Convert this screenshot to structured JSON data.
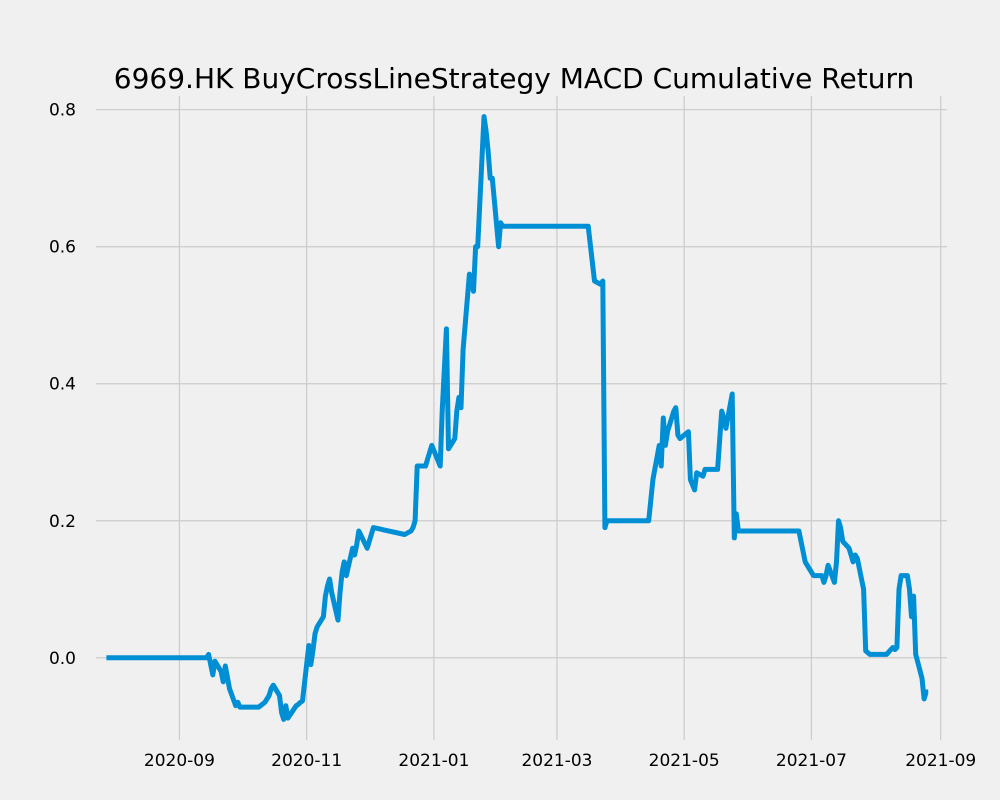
{
  "chart_data": {
    "type": "line",
    "title": "6969.HK  BuyCrossLineStrategy MACD Cumulative Return",
    "xlabel": "",
    "ylabel": "",
    "grid": true,
    "line_color": "#008fd5",
    "background_color": "#f0f0f0",
    "grid_color": "#cbcbcb",
    "xlim": [
      "2020-07-23",
      "2021-09-04"
    ],
    "ylim": [
      -0.12,
      0.82
    ],
    "x_ticks": [
      "2020-09-01",
      "2020-11-01",
      "2021-01-01",
      "2021-03-01",
      "2021-05-01",
      "2021-07-01",
      "2021-09-01"
    ],
    "x_tick_labels": [
      "2020-09",
      "2020-11",
      "2021-01",
      "2021-03",
      "2021-05",
      "2021-07",
      "2021-09"
    ],
    "y_ticks": [
      0.0,
      0.2,
      0.4,
      0.6,
      0.8
    ],
    "y_tick_labels": [
      "0.0",
      "0.2",
      "0.4",
      "0.6",
      "0.8"
    ],
    "series": [
      {
        "x": [
          "2020-07-28",
          "2020-09-14",
          "2020-09-15",
          "2020-09-16",
          "2020-09-17",
          "2020-09-18",
          "2020-09-21",
          "2020-09-22",
          "2020-09-23",
          "2020-09-25",
          "2020-09-28",
          "2020-09-29",
          "2020-09-30",
          "2020-10-05",
          "2020-10-09",
          "2020-10-12",
          "2020-10-14",
          "2020-10-15",
          "2020-10-16",
          "2020-10-19",
          "2020-10-20",
          "2020-10-21",
          "2020-10-22",
          "2020-10-23",
          "2020-10-27",
          "2020-10-28",
          "2020-10-29",
          "2020-10-30",
          "2020-11-02",
          "2020-11-03",
          "2020-11-04",
          "2020-11-05",
          "2020-11-06",
          "2020-11-09",
          "2020-11-10",
          "2020-11-11",
          "2020-11-12",
          "2020-11-13",
          "2020-11-16",
          "2020-11-17",
          "2020-11-18",
          "2020-11-19",
          "2020-11-20",
          "2020-11-23",
          "2020-11-24",
          "2020-11-25",
          "2020-11-26",
          "2020-11-30",
          "2020-12-03",
          "2020-12-18",
          "2020-12-21",
          "2020-12-22",
          "2020-12-23",
          "2020-12-24",
          "2020-12-28",
          "2020-12-29",
          "2020-12-30",
          "2020-12-31",
          "2021-01-04",
          "2021-01-05",
          "2021-01-06",
          "2021-01-07",
          "2021-01-08",
          "2021-01-11",
          "2021-01-12",
          "2021-01-13",
          "2021-01-14",
          "2021-01-15",
          "2021-01-18",
          "2021-01-19",
          "2021-01-20",
          "2021-01-21",
          "2021-01-22",
          "2021-01-25",
          "2021-01-26",
          "2021-01-27",
          "2021-01-28",
          "2021-01-29",
          "2021-02-01",
          "2021-02-02",
          "2021-02-03",
          "2021-02-05",
          "2021-03-16",
          "2021-03-19",
          "2021-03-22",
          "2021-03-23",
          "2021-03-24",
          "2021-03-25",
          "2021-04-01",
          "2021-04-13",
          "2021-04-14",
          "2021-04-16",
          "2021-04-19",
          "2021-04-20",
          "2021-04-21",
          "2021-04-22",
          "2021-04-23",
          "2021-04-26",
          "2021-04-27",
          "2021-04-28",
          "2021-04-29",
          "2021-05-03",
          "2021-05-04",
          "2021-05-06",
          "2021-05-07",
          "2021-05-10",
          "2021-05-11",
          "2021-05-12",
          "2021-05-17",
          "2021-05-19",
          "2021-05-20",
          "2021-05-21",
          "2021-05-24",
          "2021-05-25",
          "2021-05-26",
          "2021-05-27",
          "2021-05-28",
          "2021-06-25",
          "2021-06-28",
          "2021-07-02",
          "2021-07-05",
          "2021-07-06",
          "2021-07-07",
          "2021-07-08",
          "2021-07-09",
          "2021-07-12",
          "2021-07-13",
          "2021-07-14",
          "2021-07-15",
          "2021-07-16",
          "2021-07-19",
          "2021-07-20",
          "2021-07-21",
          "2021-07-22",
          "2021-07-23",
          "2021-07-26",
          "2021-07-27",
          "2021-07-29",
          "2021-08-05",
          "2021-08-06",
          "2021-08-09",
          "2021-08-10",
          "2021-08-11",
          "2021-08-12",
          "2021-08-13",
          "2021-08-16",
          "2021-08-17",
          "2021-08-18",
          "2021-08-19",
          "2021-08-20",
          "2021-08-23",
          "2021-08-24",
          "2021-08-25",
          "2021-08-26"
        ],
        "y": [
          0.0,
          0.0,
          0.005,
          -0.01,
          -0.025,
          -0.005,
          -0.02,
          -0.035,
          -0.012,
          -0.045,
          -0.07,
          -0.065,
          -0.072,
          -0.072,
          -0.072,
          -0.065,
          -0.055,
          -0.045,
          -0.04,
          -0.055,
          -0.08,
          -0.09,
          -0.07,
          -0.088,
          -0.07,
          -0.068,
          -0.065,
          -0.063,
          0.018,
          -0.01,
          0.01,
          0.035,
          0.045,
          0.06,
          0.09,
          0.105,
          0.115,
          0.095,
          0.055,
          0.095,
          0.125,
          0.14,
          0.12,
          0.16,
          0.15,
          0.165,
          0.185,
          0.16,
          0.19,
          0.18,
          0.185,
          0.19,
          0.2,
          0.28,
          0.28,
          0.29,
          0.3,
          0.31,
          0.28,
          0.36,
          0.42,
          0.48,
          0.305,
          0.32,
          0.36,
          0.38,
          0.365,
          0.45,
          0.56,
          0.55,
          0.535,
          0.6,
          0.6,
          0.79,
          0.77,
          0.74,
          0.7,
          0.7,
          0.6,
          0.635,
          0.63,
          0.63,
          0.63,
          0.55,
          0.545,
          0.55,
          0.19,
          0.2,
          0.2,
          0.2,
          0.2,
          0.26,
          0.31,
          0.28,
          0.35,
          0.31,
          0.33,
          0.36,
          0.365,
          0.325,
          0.32,
          0.33,
          0.26,
          0.245,
          0.27,
          0.265,
          0.275,
          0.275,
          0.275,
          0.36,
          0.35,
          0.335,
          0.385,
          0.175,
          0.21,
          0.185,
          0.185,
          0.185,
          0.14,
          0.12,
          0.12,
          0.12,
          0.11,
          0.12,
          0.135,
          0.11,
          0.14,
          0.2,
          0.19,
          0.17,
          0.16,
          0.15,
          0.14,
          0.15,
          0.145,
          0.1,
          0.01,
          0.005,
          0.005,
          0.005,
          0.015,
          0.012,
          0.015,
          0.1,
          0.12,
          0.12,
          0.1,
          0.06,
          0.09,
          0.005,
          -0.03,
          -0.06,
          -0.05,
          -0.05
        ]
      }
    ]
  }
}
